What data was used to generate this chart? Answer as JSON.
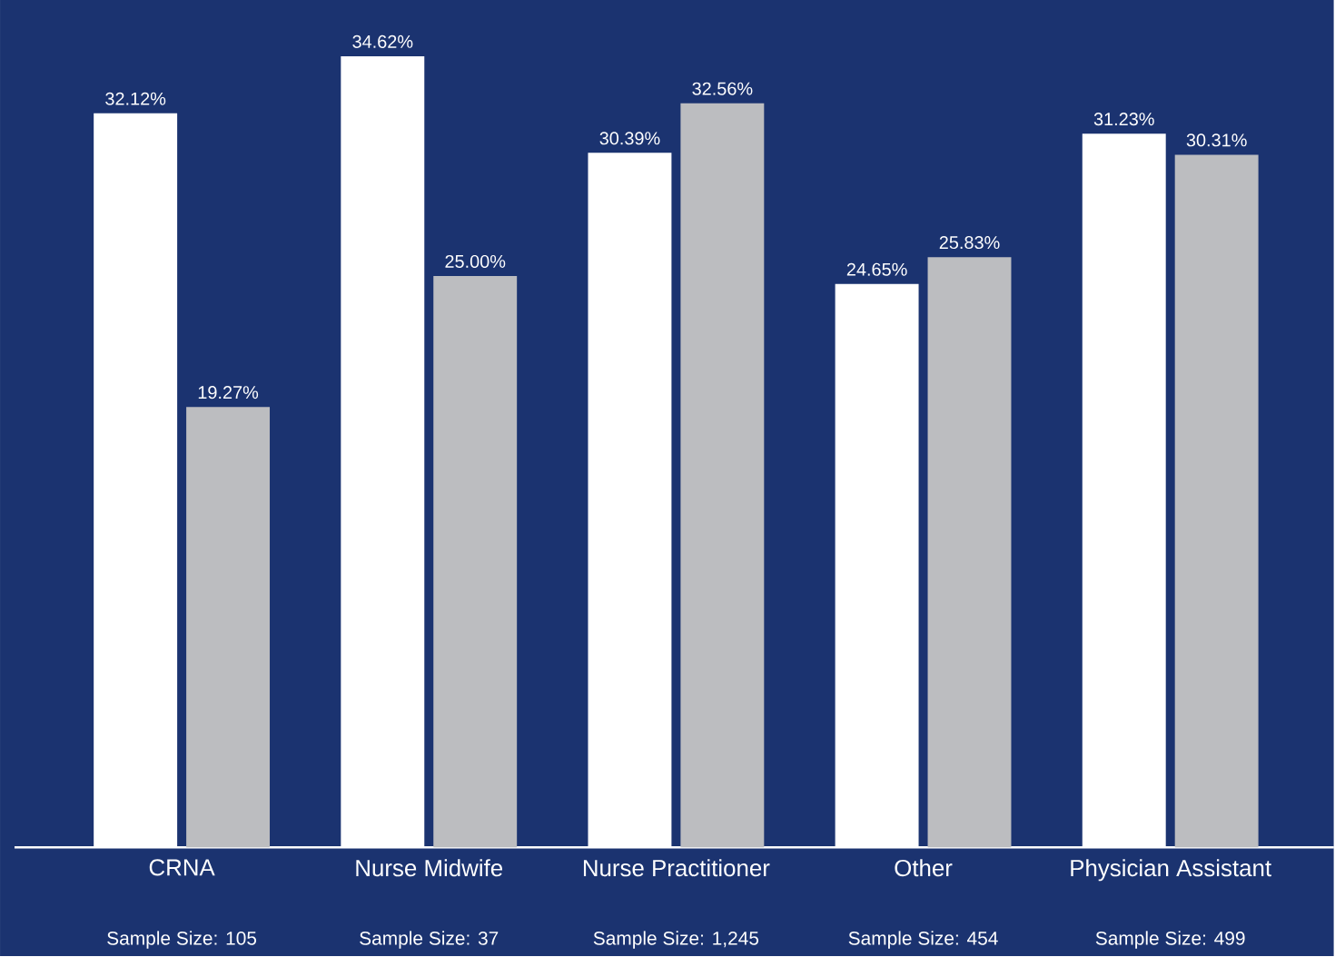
{
  "chart_data": {
    "type": "bar",
    "categories": [
      "CRNA",
      "Nurse Midwife",
      "Nurse Practitioner",
      "Other",
      "Physician Assistant"
    ],
    "series": [
      {
        "color": "#ffffff",
        "values": [
          32.12,
          34.62,
          30.39,
          24.65,
          31.23
        ],
        "value_labels": [
          "32.12%",
          "34.62%",
          "30.39%",
          "24.65%",
          "31.23%"
        ]
      },
      {
        "color": "#bcbdc0",
        "values": [
          19.27,
          25.0,
          32.56,
          25.83,
          30.31
        ],
        "value_labels": [
          "19.27%",
          "25.00%",
          "32.56%",
          "25.83%",
          "30.31%"
        ]
      }
    ],
    "annotations": [
      "Sample Size: 105",
      "Sample Size: 37",
      "Sample Size: 1,245",
      "Sample Size: 454",
      "Sample Size: 499"
    ]
  }
}
